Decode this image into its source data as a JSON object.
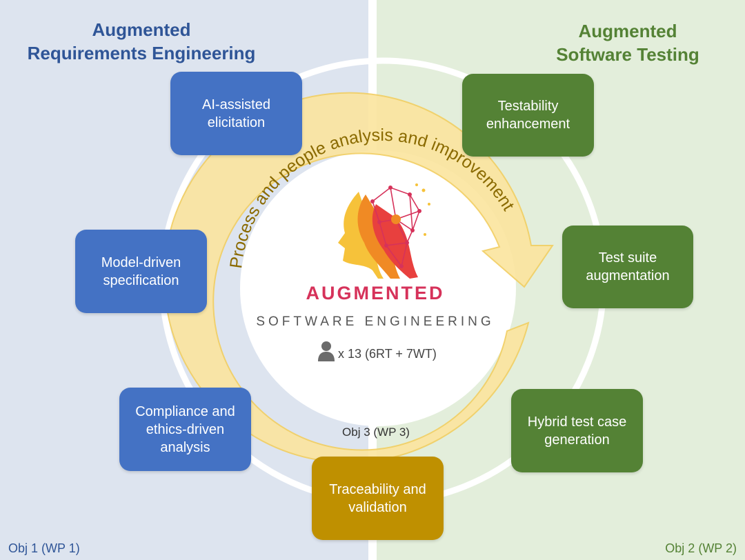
{
  "titles": {
    "left": "Augmented\nRequirements Engineering",
    "right": "Augmented\nSoftware Testing"
  },
  "objectives": {
    "left": "Obj 1 (WP 1)",
    "right": "Obj 2 (WP 2)",
    "center": "Obj 3 (WP 3)"
  },
  "arc_text": "Process and people analysis and improvement",
  "brand": {
    "name": "AUGMENTED",
    "subtitle": "SOFTWARE ENGINEERING",
    "team": "x 13 (6RT + 7WT)"
  },
  "boxes": {
    "elicitation": "AI-assisted\nelicitation",
    "model": "Model-driven\nspecification",
    "compliance": "Compliance and\nethics-driven\nanalysis",
    "traceability": "Traceability and\nvalidation",
    "testability": "Testability\nenhancement",
    "suite": "Test suite\naugmentation",
    "hybrid": "Hybrid test case\ngeneration"
  },
  "colors": {
    "left_panel": "#dde4ef",
    "right_panel": "#e3eedb",
    "blue_box": "#4472c4",
    "green_box": "#548235",
    "gold_box": "#bf9000",
    "arrow_fill": "#fbe5a0",
    "brand_accent": "#d6325a"
  },
  "icons": {
    "team": "person-icon",
    "logo": "ai-head-logo"
  }
}
